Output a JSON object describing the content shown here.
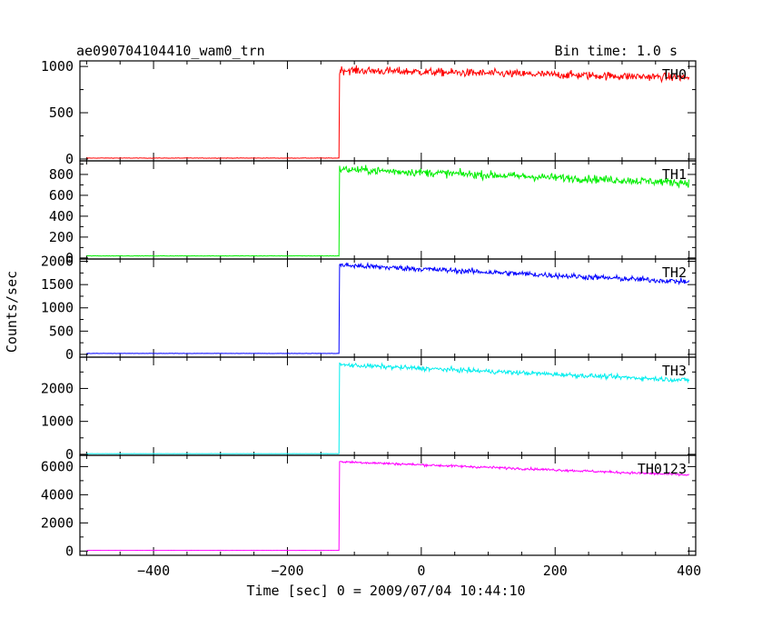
{
  "header": {
    "title": "ae090704104410_wam0_trn",
    "bin_time": "Bin time: 1.0 s"
  },
  "chart_data": {
    "type": "line",
    "xlabel": "Time [sec] 0 = 2009/07/04 10:44:10",
    "ylabel": "Counts/sec",
    "xlim": [
      -510,
      410
    ],
    "x_ticks": [
      -400,
      -200,
      0,
      200,
      400
    ],
    "x_tick_labels": [
      "−400",
      "−200",
      "0",
      "200",
      "400"
    ],
    "grid": false,
    "legend": "none",
    "panels": [
      {
        "name": "TH0",
        "color": "#ff0000",
        "ylim": [
          -20,
          1060
        ],
        "y_ticks": [
          0,
          500,
          1000
        ],
        "y_tick_labels": [
          "0",
          "500",
          "1000"
        ],
        "pre_level": 10,
        "start_level": 960,
        "end_level": 880,
        "noise": 40,
        "onset": -122
      },
      {
        "name": "TH1",
        "color": "#00ee00",
        "ylim": [
          -10,
          930
        ],
        "y_ticks": [
          0,
          200,
          400,
          600,
          800
        ],
        "y_tick_labels": [
          "0",
          "200",
          "400",
          "600",
          "800"
        ],
        "pre_level": 20,
        "start_level": 850,
        "end_level": 720,
        "noise": 35,
        "onset": -122
      },
      {
        "name": "TH2",
        "color": "#0000ff",
        "ylim": [
          -60,
          2050
        ],
        "y_ticks": [
          0,
          500,
          1000,
          1500,
          2000
        ],
        "y_tick_labels": [
          "0",
          "500",
          "1000",
          "1500",
          "2000"
        ],
        "pre_level": 20,
        "start_level": 1920,
        "end_level": 1560,
        "noise": 55,
        "onset": -122
      },
      {
        "name": "TH3",
        "color": "#00eeee",
        "ylim": [
          -30,
          2950
        ],
        "y_ticks": [
          0,
          1000,
          2000
        ],
        "y_tick_labels": [
          "0",
          "1000",
          "2000"
        ],
        "pre_level": 20,
        "start_level": 2720,
        "end_level": 2250,
        "noise": 65,
        "onset": -122
      },
      {
        "name": "TH0123",
        "color": "#ff00ff",
        "ylim": [
          -300,
          6800
        ],
        "y_ticks": [
          0,
          2000,
          4000,
          6000
        ],
        "y_tick_labels": [
          "0",
          "2000",
          "4000",
          "6000"
        ],
        "pre_level": 50,
        "start_level": 6350,
        "end_level": 5400,
        "noise": 80,
        "onset": -122
      }
    ]
  }
}
